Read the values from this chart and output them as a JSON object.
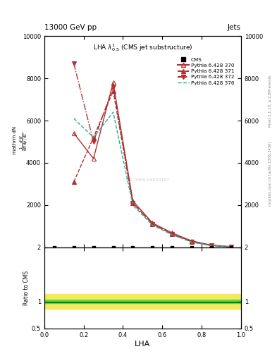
{
  "title_top": "13000 GeV pp",
  "title_right": "Jets",
  "plot_title": "LHA $\\lambda^{1}_{0.5}$ (CMS jet substructure)",
  "xlabel": "LHA",
  "ylabel_ratio": "Ratio to CMS",
  "right_label_top": "Rivet 3.1.10; ≥ 2.8M events",
  "right_label_bot": "mcplots.cern.ch [arXiv:1306.3436]",
  "watermark": "CMS_2305.04920187",
  "xlim": [
    0,
    1
  ],
  "ylim_main": [
    0,
    10000
  ],
  "ylim_ratio": [
    0.5,
    2.0
  ],
  "yticks_main": [
    2000,
    4000,
    6000,
    8000,
    10000
  ],
  "yticks_ratio": [
    0.5,
    1.0,
    2.0
  ],
  "cms_x": [
    0.05,
    0.15,
    0.25,
    0.35,
    0.45,
    0.55,
    0.65,
    0.75,
    0.85,
    0.95
  ],
  "p370_x": [
    0.15,
    0.25,
    0.35,
    0.45,
    0.55,
    0.65,
    0.75,
    0.85,
    0.95
  ],
  "p370_y": [
    5400,
    4200,
    7800,
    2200,
    1150,
    680,
    300,
    100,
    30
  ],
  "p371_x": [
    0.15,
    0.25,
    0.35,
    0.45,
    0.55,
    0.65,
    0.75,
    0.85,
    0.95
  ],
  "p371_y": [
    3100,
    5200,
    7400,
    2100,
    1100,
    630,
    270,
    88,
    22
  ],
  "p372_x": [
    0.15,
    0.25,
    0.35,
    0.45,
    0.55,
    0.65,
    0.75,
    0.85,
    0.95
  ],
  "p372_y": [
    8700,
    5000,
    7600,
    2100,
    1100,
    620,
    260,
    80,
    20
  ],
  "p376_x": [
    0.15,
    0.25,
    0.35,
    0.45,
    0.55,
    0.65,
    0.75,
    0.85,
    0.95
  ],
  "p376_y": [
    6100,
    5200,
    6400,
    2000,
    1050,
    590,
    245,
    72,
    18
  ],
  "color_p370": "#b03030",
  "color_p371": "#b03030",
  "color_p372": "#b03030",
  "color_p376": "#20b090",
  "ratio_green_lo": 0.965,
  "ratio_green_hi": 1.035,
  "ratio_yellow_lo": 0.86,
  "ratio_yellow_hi": 1.14
}
